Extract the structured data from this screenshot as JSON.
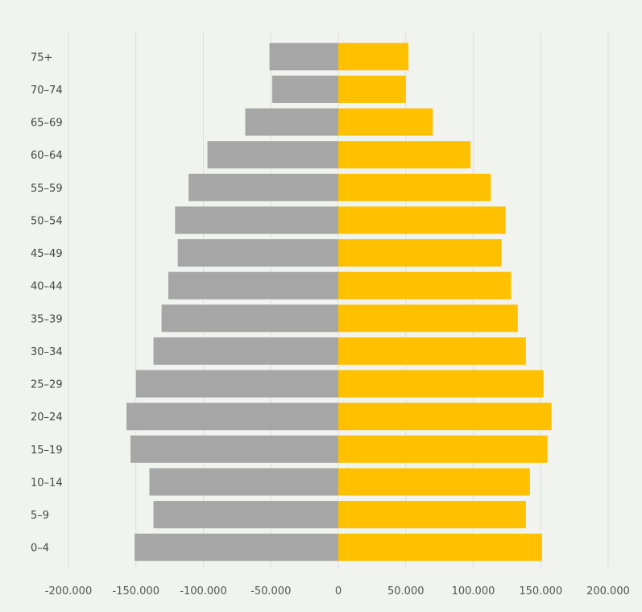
{
  "chart_data": {
    "type": "bar",
    "orientation": "horizontal",
    "stacked": "diverging",
    "title": "",
    "xlabel": "",
    "ylabel": "",
    "categories": [
      "0–4",
      "5–9",
      "10–14",
      "15–19",
      "20–24",
      "25–29",
      "30–34",
      "35–39",
      "40–44",
      "45–49",
      "50–54",
      "55–59",
      "60–64",
      "65–69",
      "70–74",
      "75+"
    ],
    "series": [
      {
        "values": [
          -151000,
          -137000,
          -140000,
          -154000,
          -157000,
          -150000,
          -137000,
          -131000,
          -126000,
          -119000,
          -121000,
          -111000,
          -97000,
          -69000,
          -49000,
          -51000
        ],
        "color": "#a6a6a6"
      },
      {
        "values": [
          151000,
          139000,
          142000,
          155000,
          158000,
          152000,
          139000,
          133000,
          128000,
          121000,
          124000,
          113000,
          98000,
          70000,
          50000,
          52000
        ],
        "color": "#ffc000"
      }
    ],
    "xlim": [
      -200000,
      200000
    ],
    "xticks": [
      -200000,
      -150000,
      -100000,
      -50000,
      0,
      50000,
      100000,
      150000,
      200000
    ],
    "xtick_labels": [
      "-200.000",
      "-150.000",
      "-100.000",
      "-50.000",
      "0",
      "50.000",
      "100.000",
      "150.000",
      "200.000"
    ],
    "grid": true,
    "legend": "none"
  }
}
